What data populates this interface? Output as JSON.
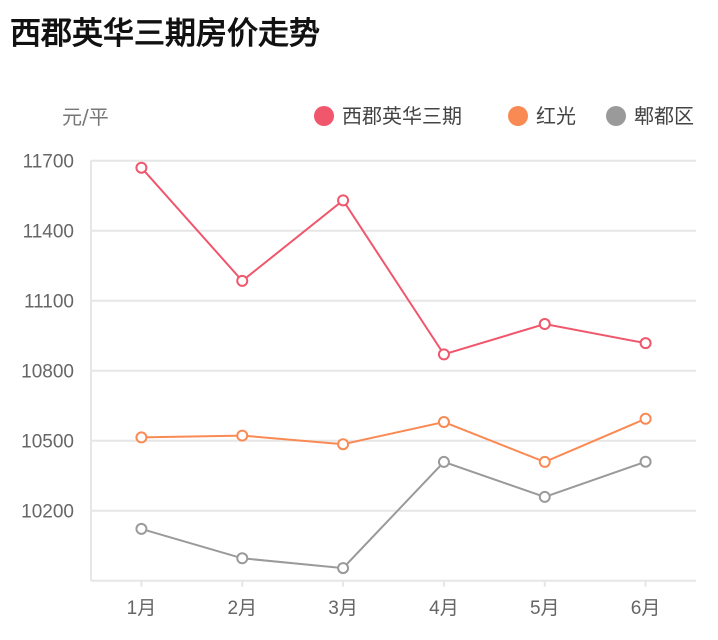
{
  "chart_data": {
    "type": "line",
    "title": "西郡英华三期房价走势",
    "ylabel": "元/平",
    "xlabel": "",
    "categories": [
      "1月",
      "2月",
      "3月",
      "4月",
      "5月",
      "6月"
    ],
    "ylim": [
      9900,
      11700
    ],
    "yticks": [
      10200,
      10500,
      10800,
      11100,
      11400,
      11700
    ],
    "grid": true,
    "legend": "top-right",
    "series": [
      {
        "name": "西郡英华三期",
        "color": "#f0566c",
        "values": [
          11670,
          11185,
          11530,
          10870,
          11000,
          10918
        ]
      },
      {
        "name": "红光",
        "color": "#f98a54",
        "values": [
          10514,
          10522,
          10485,
          10580,
          10409,
          10594
        ]
      },
      {
        "name": "郫都区",
        "color": "#9a9a9a",
        "values": [
          10122,
          9996,
          9954,
          10409,
          10259,
          10410
        ]
      }
    ]
  }
}
